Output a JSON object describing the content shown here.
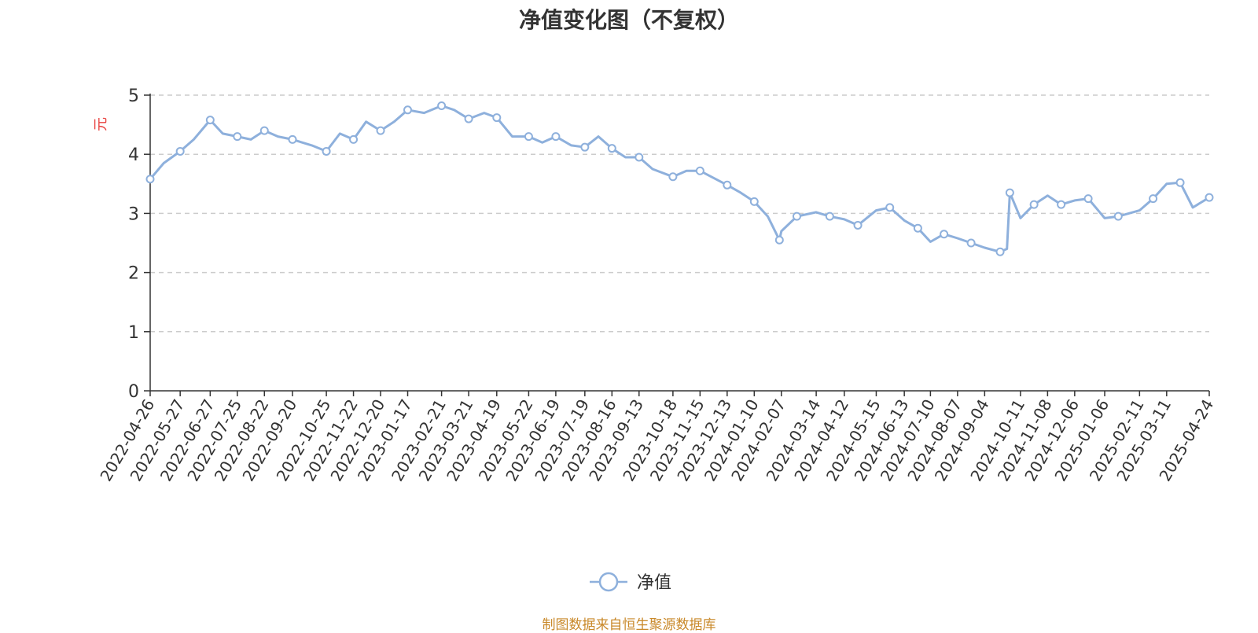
{
  "chart_data": {
    "type": "line",
    "title": "净值变化图（不复权）",
    "ylabel": "元",
    "ylim": [
      0,
      5
    ],
    "yticks": [
      0,
      1,
      2,
      3,
      4,
      5
    ],
    "grid": "horizontal dashed",
    "legend_position": "bottom-center",
    "source_note": "制图数据来自恒生聚源数据库",
    "x_tick_labels": [
      "2022-04-26",
      "2022-05-27",
      "2022-06-27",
      "2022-07-25",
      "2022-08-22",
      "2022-09-20",
      "2022-10-25",
      "2022-11-22",
      "2022-12-20",
      "2023-01-17",
      "2023-02-21",
      "2023-03-21",
      "2023-04-19",
      "2023-05-22",
      "2023-06-19",
      "2023-07-19",
      "2023-08-16",
      "2023-09-13",
      "2023-10-18",
      "2023-11-15",
      "2023-12-13",
      "2024-01-10",
      "2024-02-07",
      "2024-03-14",
      "2024-04-12",
      "2024-05-15",
      "2024-06-13",
      "2024-07-10",
      "2024-08-07",
      "2024-09-04",
      "2024-10-11",
      "2024-11-08",
      "2024-12-06",
      "2025-01-06",
      "2025-02-11",
      "2025-03-11",
      "2025-04-24"
    ],
    "series": [
      {
        "name": "净值",
        "color": "#8eb0dc",
        "x": [
          "2022-04-26",
          "2022-05-10",
          "2022-05-27",
          "2022-06-10",
          "2022-06-27",
          "2022-07-10",
          "2022-07-25",
          "2022-08-08",
          "2022-08-22",
          "2022-09-05",
          "2022-09-20",
          "2022-10-10",
          "2022-10-25",
          "2022-11-08",
          "2022-11-22",
          "2022-12-05",
          "2022-12-20",
          "2023-01-03",
          "2023-01-17",
          "2023-02-03",
          "2023-02-21",
          "2023-03-06",
          "2023-03-21",
          "2023-04-06",
          "2023-04-19",
          "2023-05-05",
          "2023-05-22",
          "2023-06-05",
          "2023-06-19",
          "2023-07-05",
          "2023-07-19",
          "2023-08-02",
          "2023-08-16",
          "2023-08-30",
          "2023-09-13",
          "2023-09-27",
          "2023-10-18",
          "2023-11-01",
          "2023-11-15",
          "2023-11-29",
          "2023-12-13",
          "2023-12-27",
          "2024-01-10",
          "2024-01-24",
          "2024-02-05",
          "2024-02-07",
          "2024-02-23",
          "2024-03-14",
          "2024-03-28",
          "2024-04-12",
          "2024-04-26",
          "2024-05-15",
          "2024-05-29",
          "2024-06-13",
          "2024-06-27",
          "2024-07-10",
          "2024-07-24",
          "2024-08-07",
          "2024-08-21",
          "2024-09-04",
          "2024-09-20",
          "2024-09-27",
          "2024-09-30",
          "2024-10-11",
          "2024-10-25",
          "2024-11-08",
          "2024-11-22",
          "2024-12-06",
          "2024-12-20",
          "2025-01-06",
          "2025-01-20",
          "2025-02-11",
          "2025-02-25",
          "2025-03-11",
          "2025-03-25",
          "2025-04-07",
          "2025-04-24"
        ],
        "values": [
          3.58,
          3.85,
          4.05,
          4.25,
          4.58,
          4.35,
          4.3,
          4.25,
          4.4,
          4.3,
          4.25,
          4.15,
          4.05,
          4.35,
          4.25,
          4.55,
          4.4,
          4.55,
          4.75,
          4.7,
          4.82,
          4.75,
          4.6,
          4.7,
          4.62,
          4.3,
          4.3,
          4.2,
          4.3,
          4.15,
          4.12,
          4.3,
          4.1,
          3.95,
          3.95,
          3.75,
          3.62,
          3.72,
          3.72,
          3.6,
          3.48,
          3.35,
          3.2,
          2.95,
          2.55,
          2.7,
          2.95,
          3.02,
          2.95,
          2.9,
          2.8,
          3.05,
          3.1,
          2.88,
          2.75,
          2.52,
          2.65,
          2.58,
          2.5,
          2.42,
          2.35,
          2.4,
          3.35,
          2.92,
          3.15,
          3.3,
          3.15,
          3.22,
          3.25,
          2.92,
          2.95,
          3.05,
          3.25,
          3.5,
          3.52,
          3.1,
          3.27
        ]
      }
    ]
  }
}
